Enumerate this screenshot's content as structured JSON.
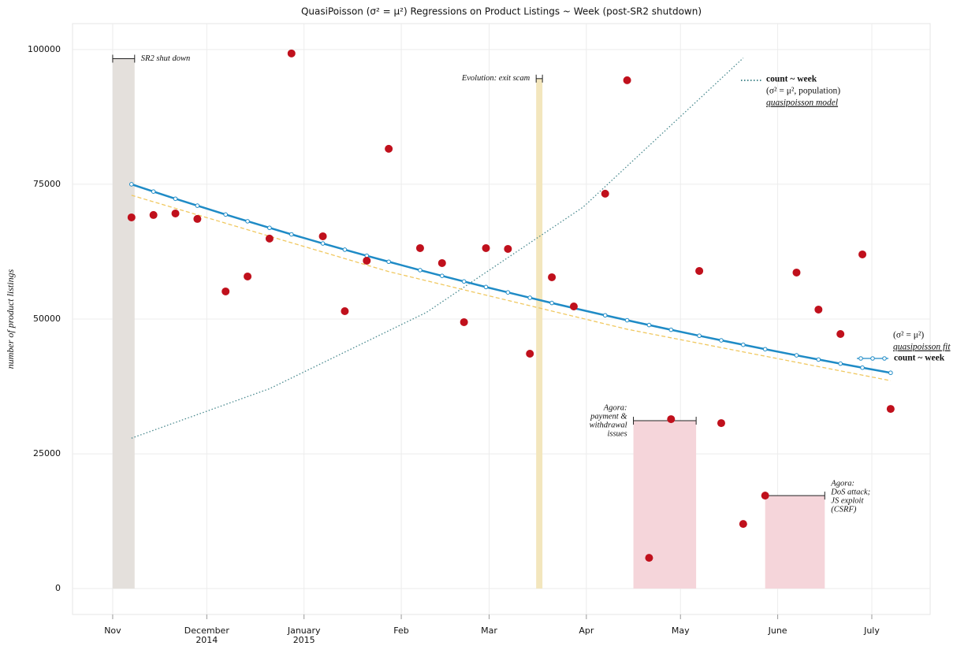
{
  "chart_data": {
    "type": "scatter",
    "title": "QuasiPoisson (σ² = μ²) Regressions on Product Listings ~ Week (post-SR2 shutdown)",
    "y_label": "number of product listings",
    "xlim": [
      -12.8,
      260.6
    ],
    "ylim": [
      -4800,
      104800
    ],
    "xticks": [
      {
        "value": 0,
        "label": "Nov"
      },
      {
        "value": 30,
        "label": "December\n2014"
      },
      {
        "value": 61,
        "label": "January\n2015"
      },
      {
        "value": 92,
        "label": "Feb"
      },
      {
        "value": 120,
        "label": "Mar"
      },
      {
        "value": 151,
        "label": "Apr"
      },
      {
        "value": 181,
        "label": "May"
      },
      {
        "value": 212,
        "label": "June"
      },
      {
        "value": 242,
        "label": "July"
      }
    ],
    "yticks": [
      0,
      25000,
      50000,
      75000,
      100000
    ],
    "grid": true,
    "color": "#c0101c",
    "x": [
      6,
      13,
      20,
      27,
      36,
      43,
      50,
      57,
      67,
      74,
      81,
      88,
      98,
      105,
      112,
      119,
      126,
      133,
      140,
      147,
      157,
      164,
      171,
      178,
      187,
      194,
      201,
      208,
      218,
      225,
      232,
      239,
      248
    ],
    "values": [
      68860,
      69300,
      69590,
      68570,
      55120,
      57900,
      64920,
      99270,
      65350,
      51460,
      60820,
      81580,
      63160,
      60380,
      49420,
      63160,
      63010,
      43570,
      57750,
      52340,
      73250,
      94300,
      5700,
      31430,
      58920,
      30700,
      11990,
      17250,
      58630,
      51760,
      47220,
      61990,
      33330
    ],
    "fits": [
      {
        "name": "count ~ week",
        "legend_notes": [
          "(σ² = μ², population)",
          "quasipoisson model"
        ],
        "color": "#4a8a8f",
        "style": "dotted",
        "markers": false,
        "x": [
          6,
          50,
          100,
          150,
          201
        ],
        "values": [
          27900,
          37080,
          51230,
          70780,
          98420
        ]
      },
      {
        "color": "#f0c860",
        "style": "dashed",
        "markers": false,
        "x": [
          6,
          88,
          164,
          248
        ],
        "values": [
          72960,
          58800,
          48110,
          38570
        ]
      },
      {
        "name": "count ~ week",
        "legend_notes": [
          "(σ² = μ²)",
          "quasipoisson fit"
        ],
        "color": "#1f8bc6",
        "style": "solid",
        "markers": true,
        "x": [
          6,
          13,
          20,
          27,
          36,
          43,
          50,
          57,
          67,
          74,
          81,
          88,
          98,
          105,
          112,
          119,
          126,
          133,
          140,
          147,
          157,
          164,
          171,
          178,
          187,
          194,
          201,
          208,
          218,
          225,
          232,
          239,
          248
        ],
        "values": [
          75000,
          73650,
          72320,
          71030,
          69390,
          68140,
          66920,
          65710,
          64020,
          62870,
          61740,
          60630,
          59070,
          58010,
          56970,
          55940,
          54940,
          53950,
          52980,
          52030,
          50690,
          49780,
          48890,
          48010,
          46900,
          46050,
          45230,
          44410,
          43270,
          42490,
          41730,
          40980,
          40030
        ]
      }
    ],
    "events": [
      {
        "label_lines": [
          "SR2 shut down"
        ],
        "start": 0,
        "end": 7,
        "top": 98300,
        "color": "#e4e0dc",
        "label_side": "right"
      },
      {
        "label_lines": [
          "Evolution: exit scam"
        ],
        "start": 135,
        "end": 137,
        "top": 94600,
        "color": "#f3e6bd",
        "label_side": "left"
      },
      {
        "label_lines": [
          "Agora:",
          "payment &",
          "withdrawal",
          "issues"
        ],
        "start": 166,
        "end": 186,
        "top": 31140,
        "color": "#f5d5da",
        "label_side": "left"
      },
      {
        "label_lines": [
          "Agora:",
          "DoS attack;",
          "JS exploit",
          "(CSRF)"
        ],
        "start": 208,
        "end": 227,
        "top": 17250,
        "color": "#f5d5da",
        "label_side": "right"
      }
    ]
  }
}
